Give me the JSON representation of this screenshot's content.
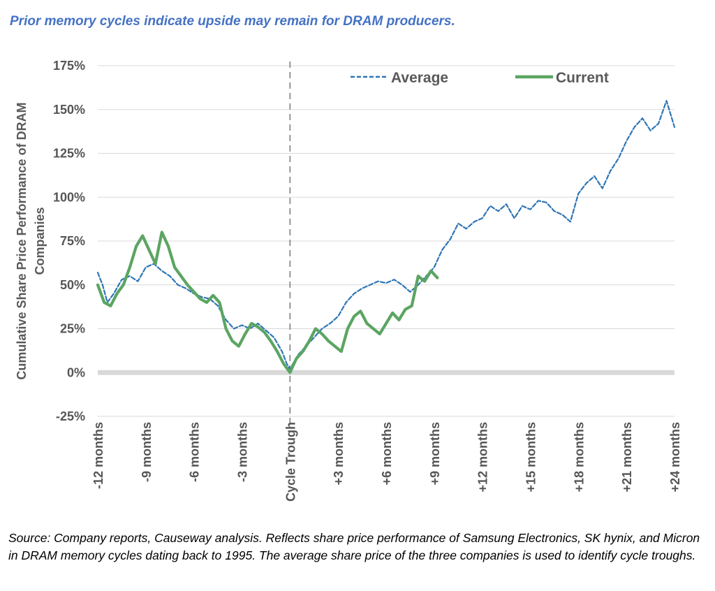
{
  "title": "Prior memory cycles indicate upside may remain for DRAM producers.",
  "source": "Source: Company reports, Causeway analysis. Reflects share price performance of Samsung Electronics, SK hynix, and Micron in DRAM memory cycles dating back to 1995. The average share price of the three companies is used to identify cycle troughs.",
  "chart_data": {
    "type": "line",
    "ylabel": [
      "Cumulative Share Price Performance of DRAM",
      "Companies"
    ],
    "ylim": [
      -0.25,
      1.75
    ],
    "yticks": [
      -0.25,
      0,
      0.25,
      0.5,
      0.75,
      1.0,
      1.25,
      1.5,
      1.75
    ],
    "ytick_labels": [
      "-25%",
      "0%",
      "25%",
      "50%",
      "75%",
      "100%",
      "125%",
      "150%",
      "175%"
    ],
    "xlim": [
      -12,
      24
    ],
    "xticks": [
      -12,
      -9,
      -6,
      -3,
      0,
      3,
      6,
      9,
      12,
      15,
      18,
      21,
      24
    ],
    "xtick_labels": [
      "-12 months",
      "-9 months",
      "-6 months",
      "-3 months",
      "Cycle Trough",
      "+3 months",
      "+6 months",
      "+9 months",
      "+12 months",
      "+15 months",
      "+18 months",
      "+21 months",
      "+24 months"
    ],
    "trough_line_x": 0,
    "grid": "horizontal",
    "legend_position": "top-right",
    "series": [
      {
        "name": "Average",
        "style": "dashed",
        "color": "#2E75B6",
        "x": [
          -12,
          -11.7,
          -11.4,
          -11,
          -10.5,
          -10,
          -9.5,
          -9,
          -8.5,
          -8,
          -7.5,
          -7,
          -6.5,
          -6,
          -5.5,
          -5,
          -4.5,
          -4,
          -3.5,
          -3,
          -2.5,
          -2,
          -1.5,
          -1,
          -0.5,
          -0.2,
          0,
          0.5,
          1,
          1.5,
          2,
          2.5,
          3,
          3.5,
          4,
          4.5,
          5,
          5.5,
          6,
          6.5,
          7,
          7.5,
          8,
          8.5,
          9,
          9.5,
          10,
          10.5,
          11,
          11.5,
          12,
          12.5,
          13,
          13.5,
          14,
          14.5,
          15,
          15.5,
          16,
          16.5,
          17,
          17.5,
          18,
          18.5,
          19,
          19.5,
          20,
          20.5,
          21,
          21.5,
          22,
          22.5,
          23,
          23.5,
          24
        ],
        "y": [
          0.57,
          0.5,
          0.4,
          0.45,
          0.53,
          0.55,
          0.52,
          0.6,
          0.62,
          0.58,
          0.55,
          0.5,
          0.48,
          0.45,
          0.43,
          0.42,
          0.38,
          0.3,
          0.25,
          0.27,
          0.25,
          0.28,
          0.24,
          0.2,
          0.12,
          0.05,
          0.02,
          0.1,
          0.15,
          0.2,
          0.25,
          0.28,
          0.32,
          0.4,
          0.45,
          0.48,
          0.5,
          0.52,
          0.51,
          0.53,
          0.5,
          0.46,
          0.5,
          0.55,
          0.6,
          0.7,
          0.76,
          0.85,
          0.82,
          0.86,
          0.88,
          0.95,
          0.92,
          0.96,
          0.88,
          0.95,
          0.93,
          0.98,
          0.97,
          0.92,
          0.9,
          0.86,
          1.02,
          1.08,
          1.12,
          1.05,
          1.15,
          1.22,
          1.32,
          1.4,
          1.45,
          1.38,
          1.42,
          1.55,
          1.4
        ]
      },
      {
        "name": "Current",
        "style": "solid",
        "color": "#5BA562",
        "x": [
          -12,
          -11.6,
          -11.2,
          -10.8,
          -10.4,
          -10,
          -9.6,
          -9.2,
          -8.8,
          -8.4,
          -8,
          -7.6,
          -7.2,
          -6.8,
          -6.4,
          -6,
          -5.6,
          -5.2,
          -4.8,
          -4.4,
          -4,
          -3.6,
          -3.2,
          -2.8,
          -2.4,
          -2,
          -1.6,
          -1.2,
          -0.8,
          -0.4,
          0,
          0.4,
          0.8,
          1.2,
          1.6,
          2,
          2.4,
          2.8,
          3.2,
          3.6,
          4,
          4.4,
          4.8,
          5.2,
          5.6,
          6,
          6.4,
          6.8,
          7.2,
          7.6,
          8,
          8.4,
          8.8,
          9.2
        ],
        "y": [
          0.5,
          0.4,
          0.38,
          0.45,
          0.5,
          0.6,
          0.72,
          0.78,
          0.7,
          0.62,
          0.8,
          0.72,
          0.6,
          0.55,
          0.5,
          0.46,
          0.42,
          0.4,
          0.44,
          0.4,
          0.25,
          0.18,
          0.15,
          0.22,
          0.28,
          0.26,
          0.23,
          0.18,
          0.12,
          0.05,
          0.0,
          0.08,
          0.12,
          0.18,
          0.25,
          0.22,
          0.18,
          0.15,
          0.12,
          0.25,
          0.32,
          0.35,
          0.28,
          0.25,
          0.22,
          0.28,
          0.34,
          0.3,
          0.36,
          0.38,
          0.55,
          0.52,
          0.58,
          0.54
        ]
      }
    ]
  }
}
